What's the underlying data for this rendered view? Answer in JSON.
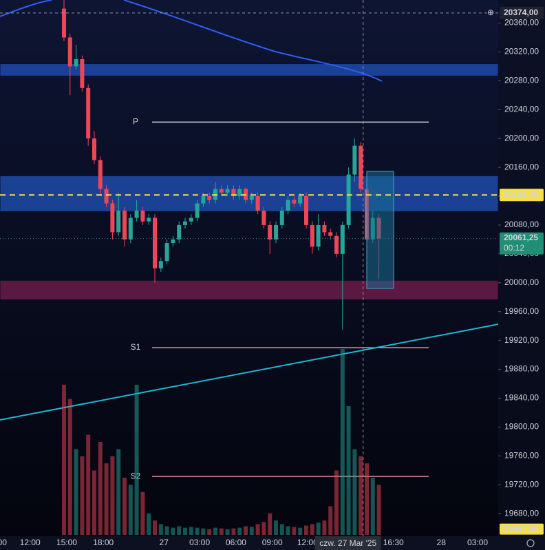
{
  "chart_data": {
    "type": "candlestick",
    "ylim": [
      19640,
      20392
    ],
    "yticks": [
      {
        "value": 20360,
        "label": "20360,00"
      },
      {
        "value": 20320,
        "label": "20320,00"
      },
      {
        "value": 20280,
        "label": "20280,00"
      },
      {
        "value": 20240,
        "label": "20240,00"
      },
      {
        "value": 20200,
        "label": "20200,00"
      },
      {
        "value": 20160,
        "label": "20160,00"
      },
      {
        "value": 20120,
        "label": "20120,00"
      },
      {
        "value": 20080,
        "label": "20080,00"
      },
      {
        "value": 20040,
        "label": "20040,00"
      },
      {
        "value": 20000,
        "label": "20000,00"
      },
      {
        "value": 19960,
        "label": "19960,00"
      },
      {
        "value": 19920,
        "label": "19920,00"
      },
      {
        "value": 19880,
        "label": "19880,00"
      },
      {
        "value": 19840,
        "label": "19840,00"
      },
      {
        "value": 19800,
        "label": "19800,00"
      },
      {
        "value": 19760,
        "label": "19760,00"
      },
      {
        "value": 19720,
        "label": "19720,00"
      },
      {
        "value": 19680,
        "label": "19680,00"
      }
    ],
    "xticks": [
      {
        "value": -10.2,
        "label": "00"
      },
      {
        "value": -5.6,
        "label": "12:00"
      },
      {
        "value": 0.45,
        "label": "15:00"
      },
      {
        "value": 6.5,
        "label": "18:00"
      },
      {
        "value": 16.5,
        "label": "27"
      },
      {
        "value": 22.4,
        "label": "03:00"
      },
      {
        "value": 28.4,
        "label": "06:00"
      },
      {
        "value": 34.4,
        "label": "09:00"
      },
      {
        "value": 40.2,
        "label": "12:00"
      },
      {
        "value": 54.4,
        "label": "16:30"
      },
      {
        "value": 62.3,
        "label": "28"
      },
      {
        "value": 68.3,
        "label": "03:00"
      }
    ],
    "up_color": "#26a69a",
    "down_color": "#ef4657",
    "open": [
      20380,
      20340,
      20300,
      20310,
      20270,
      20200,
      20170,
      20130,
      20110,
      20070,
      20100,
      20060,
      20090,
      20100,
      20085,
      20090,
      20020,
      20030,
      20055,
      20060,
      20080,
      20085,
      20090,
      20110,
      20120,
      20115,
      20130,
      20125,
      20130,
      20120,
      20130,
      20115,
      20120,
      20100,
      20080,
      20060,
      20080,
      20100,
      20115,
      20110,
      20120,
      20080,
      20050,
      20080,
      20070,
      20065,
      20040,
      20080,
      20150,
      20190,
      20130,
      20060,
      20090
    ],
    "high": [
      20392,
      20345,
      20330,
      20315,
      20275,
      20210,
      20175,
      20135,
      20115,
      20125,
      20105,
      20095,
      20115,
      20105,
      20095,
      20095,
      20035,
      20060,
      20065,
      20085,
      20090,
      20095,
      20115,
      20125,
      20125,
      20140,
      20135,
      20135,
      20135,
      20135,
      20132,
      20125,
      20125,
      20105,
      20085,
      20085,
      20105,
      20120,
      20120,
      20125,
      20125,
      20085,
      20095,
      20085,
      20075,
      20070,
      20085,
      20160,
      20200,
      20195,
      20135,
      20100,
      20095
    ],
    "low": [
      20335,
      20260,
      20295,
      20265,
      20190,
      20165,
      20120,
      20105,
      20060,
      20065,
      20050,
      20055,
      20085,
      20080,
      20080,
      20000,
      20015,
      20025,
      20050,
      20055,
      20075,
      20080,
      20085,
      20105,
      20110,
      20110,
      20120,
      20120,
      20115,
      20115,
      20110,
      20110,
      20095,
      20075,
      20040,
      20055,
      20075,
      20095,
      20105,
      20105,
      20075,
      20040,
      20045,
      20065,
      20060,
      20035,
      19935,
      20075,
      20140,
      20125,
      20050,
      20055,
      20005
    ],
    "close": [
      20340,
      20300,
      20310,
      20270,
      20200,
      20170,
      20130,
      20110,
      20070,
      20100,
      20060,
      20090,
      20100,
      20085,
      20090,
      20020,
      20030,
      20055,
      20060,
      20080,
      20085,
      20090,
      20110,
      20120,
      20115,
      20130,
      20125,
      20130,
      20120,
      20130,
      20115,
      20120,
      20100,
      20080,
      20060,
      20080,
      20100,
      20115,
      20110,
      20120,
      20080,
      20050,
      20080,
      20070,
      20065,
      20040,
      20080,
      20150,
      20190,
      20130,
      20060,
      20090,
      20061.25
    ],
    "volume": [
      2100,
      1900,
      1200,
      1100,
      1400,
      900,
      1300,
      1000,
      1100,
      1200,
      800,
      700,
      2100,
      600,
      300,
      200,
      150,
      120,
      100,
      120,
      100,
      110,
      100,
      90,
      80,
      100,
      90,
      80,
      90,
      100,
      120,
      110,
      150,
      180,
      300,
      200,
      150,
      120,
      110,
      100,
      130,
      150,
      170,
      200,
      400,
      900,
      2600,
      1800,
      1200,
      1100,
      1000,
      800,
      700
    ],
    "zones": [
      {
        "from": 20286.6,
        "to": 20303.7,
        "color": "#1d4aa8"
      },
      {
        "from": 20098.7,
        "to": 20148.3,
        "color": "#1d4aa8"
      },
      {
        "from": 19976.6,
        "to": 20003.3,
        "color": "#6a1b47"
      }
    ],
    "levels": [
      {
        "label": "P",
        "value": 20222.7,
        "color": "#d0d4e0"
      },
      {
        "label": "S1",
        "value": 19910,
        "color": "#c7a3ab"
      },
      {
        "label": "S2",
        "value": 19731.5,
        "color": "#c98d8d"
      }
    ],
    "dashed_level": {
      "value": 20121.75,
      "label": "20121,75",
      "color": "#f5e04a"
    },
    "last_price": {
      "value": 20061.25,
      "label": "20061,25",
      "countdown": "00:12",
      "color": "#1f8f76"
    },
    "crosshair": {
      "value": 20374,
      "label": "20374,00",
      "x": 49.4,
      "time_label": "czw. 27 Mar '25"
    },
    "low_marker": {
      "value": 19647,
      "label": "19647,00",
      "color": "#f5e04a"
    }
  }
}
